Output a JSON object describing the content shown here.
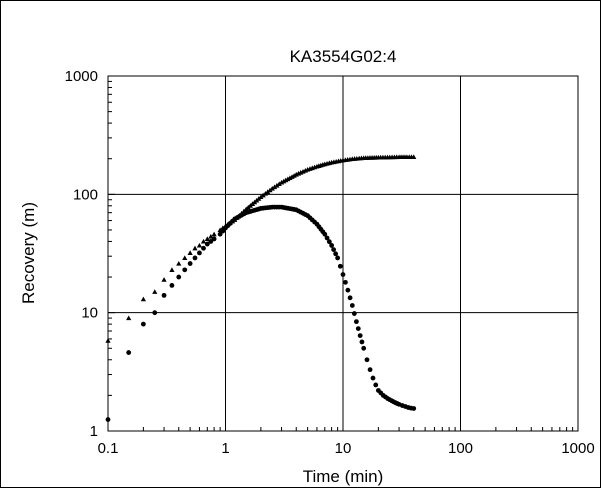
{
  "chart_data": {
    "type": "scatter",
    "title": "KA3554G02:4",
    "xlabel": "Time (min)",
    "ylabel": "Recovery (m)",
    "x_scale": "log",
    "y_scale": "log",
    "xlim": [
      0.1,
      1000
    ],
    "ylim": [
      1,
      1000
    ],
    "x_ticks": [
      0.1,
      1,
      10,
      100,
      1000
    ],
    "x_tick_labels": [
      "0.1",
      "1",
      "10",
      "100",
      "1000"
    ],
    "y_ticks": [
      1,
      10,
      100,
      1000
    ],
    "y_tick_labels": [
      "1",
      "10",
      "100",
      "1000"
    ],
    "grid": true,
    "legend": "none",
    "series": [
      {
        "marker": "triangle",
        "x": [
          0.1,
          0.15,
          0.2,
          0.25,
          0.3,
          0.35,
          0.4,
          0.45,
          0.5,
          0.55,
          0.6,
          0.65,
          0.7,
          0.75,
          0.8,
          0.9,
          1,
          1.2,
          1.5,
          2,
          2.5,
          3,
          4,
          5,
          6,
          7,
          8,
          10,
          12,
          15,
          20,
          25,
          30,
          35,
          40
        ],
        "y": [
          5.8,
          9,
          13,
          15,
          19,
          23,
          26,
          29,
          32,
          35,
          37,
          40,
          42,
          44,
          46,
          50,
          54,
          61,
          75,
          95,
          112,
          126,
          147,
          162,
          172,
          180,
          186,
          194,
          199,
          203,
          205,
          206,
          207,
          207,
          207
        ]
      },
      {
        "marker": "dot",
        "x": [
          0.1,
          0.15,
          0.2,
          0.25,
          0.3,
          0.35,
          0.4,
          0.45,
          0.5,
          0.55,
          0.6,
          0.65,
          0.7,
          0.75,
          0.8,
          0.9,
          1,
          1.2,
          1.5,
          2,
          2.5,
          3,
          4,
          5,
          6,
          7,
          8,
          9,
          10,
          11,
          12,
          13,
          14,
          15,
          16,
          17,
          18,
          19,
          20,
          22,
          24,
          26,
          28,
          30,
          32,
          34,
          36,
          38,
          40
        ],
        "y": [
          1.25,
          4.6,
          8,
          10,
          14,
          17,
          20,
          23,
          26,
          29,
          32,
          35,
          38,
          40,
          42,
          46,
          52,
          62,
          70,
          76,
          78,
          78,
          74,
          66,
          56,
          46,
          37,
          29,
          21,
          15.5,
          11.5,
          8.4,
          6.4,
          5,
          4,
          3.3,
          2.8,
          2.45,
          2.2,
          2.0,
          1.88,
          1.8,
          1.73,
          1.68,
          1.64,
          1.61,
          1.58,
          1.56,
          1.55
        ]
      }
    ]
  }
}
